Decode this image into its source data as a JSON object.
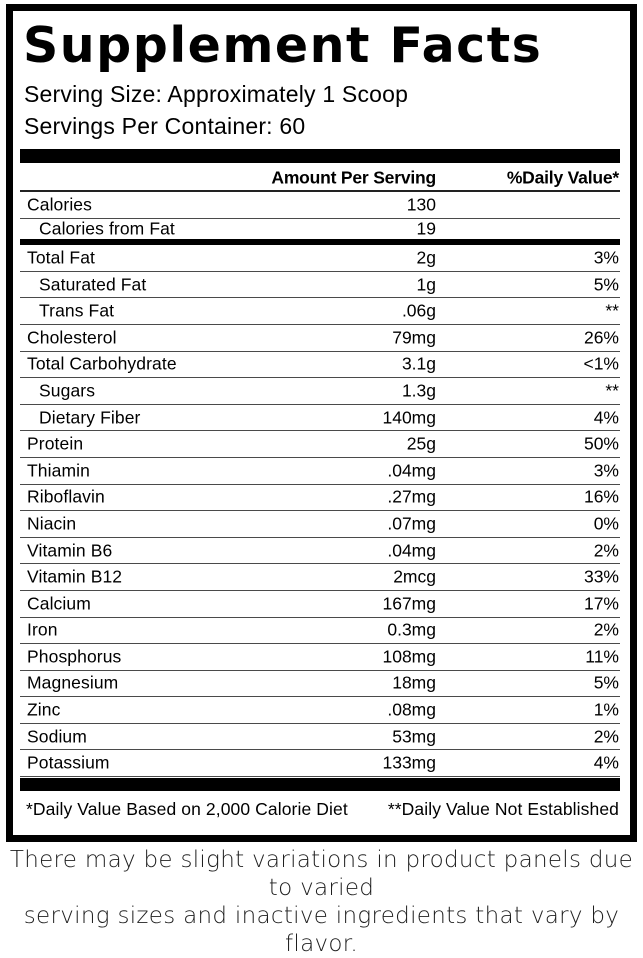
{
  "label": {
    "title": "Supplement Facts",
    "serving_size": "Serving Size: Approximately 1 Scoop",
    "servings_per_container": "Servings Per Container: 60",
    "columns": {
      "amount": "Amount Per Serving",
      "daily_value": "%Daily Value*"
    },
    "rows": [
      {
        "name": "Calories",
        "amount": "130",
        "dv": "",
        "indent": false,
        "group_end": false
      },
      {
        "name": "Calories from Fat",
        "amount": "19",
        "dv": "",
        "indent": true,
        "group_end": true
      },
      {
        "name": "Total Fat",
        "amount": "2g",
        "dv": "3%",
        "indent": false,
        "group_end": false
      },
      {
        "name": "Saturated Fat",
        "amount": "1g",
        "dv": "5%",
        "indent": true,
        "group_end": false
      },
      {
        "name": "Trans Fat",
        "amount": ".06g",
        "dv": "**",
        "indent": true,
        "group_end": false
      },
      {
        "name": "Cholesterol",
        "amount": "79mg",
        "dv": "26%",
        "indent": false,
        "group_end": false
      },
      {
        "name": "Total Carbohydrate",
        "amount": "3.1g",
        "dv": "<1%",
        "indent": false,
        "group_end": false
      },
      {
        "name": "Sugars",
        "amount": "1.3g",
        "dv": "**",
        "indent": true,
        "group_end": false
      },
      {
        "name": "Dietary Fiber",
        "amount": "140mg",
        "dv": "4%",
        "indent": true,
        "group_end": false
      },
      {
        "name": "Protein",
        "amount": "25g",
        "dv": "50%",
        "indent": false,
        "group_end": false
      },
      {
        "name": "Thiamin",
        "amount": ".04mg",
        "dv": "3%",
        "indent": false,
        "group_end": false
      },
      {
        "name": "Riboflavin",
        "amount": ".27mg",
        "dv": "16%",
        "indent": false,
        "group_end": false
      },
      {
        "name": "Niacin",
        "amount": ".07mg",
        "dv": "0%",
        "indent": false,
        "group_end": false
      },
      {
        "name": "Vitamin B6",
        "amount": ".04mg",
        "dv": "2%",
        "indent": false,
        "group_end": false
      },
      {
        "name": "Vitamin B12",
        "amount": "2mcg",
        "dv": "33%",
        "indent": false,
        "group_end": false
      },
      {
        "name": "Calcium",
        "amount": "167mg",
        "dv": "17%",
        "indent": false,
        "group_end": false
      },
      {
        "name": "Iron",
        "amount": "0.3mg",
        "dv": "2%",
        "indent": false,
        "group_end": false
      },
      {
        "name": "Phosphorus",
        "amount": "108mg",
        "dv": "11%",
        "indent": false,
        "group_end": false
      },
      {
        "name": "Magnesium",
        "amount": "18mg",
        "dv": "5%",
        "indent": false,
        "group_end": false
      },
      {
        "name": "Zinc",
        "amount": ".08mg",
        "dv": "1%",
        "indent": false,
        "group_end": false
      },
      {
        "name": "Sodium",
        "amount": "53mg",
        "dv": "2%",
        "indent": false,
        "group_end": false
      },
      {
        "name": "Potassium",
        "amount": "133mg",
        "dv": "4%",
        "indent": false,
        "group_end": false
      }
    ],
    "footnotes": {
      "left": "*Daily Value Based on 2,000 Calorie Diet",
      "right": "**Daily Value Not Established"
    }
  },
  "disclaimer": {
    "line1": "There may be slight variations in product panels due to varied",
    "line2": "serving sizes and inactive ingredients that vary by flavor."
  },
  "colors": {
    "ink": "#000000",
    "divider": "#4a4a4a",
    "background": "#ffffff"
  }
}
